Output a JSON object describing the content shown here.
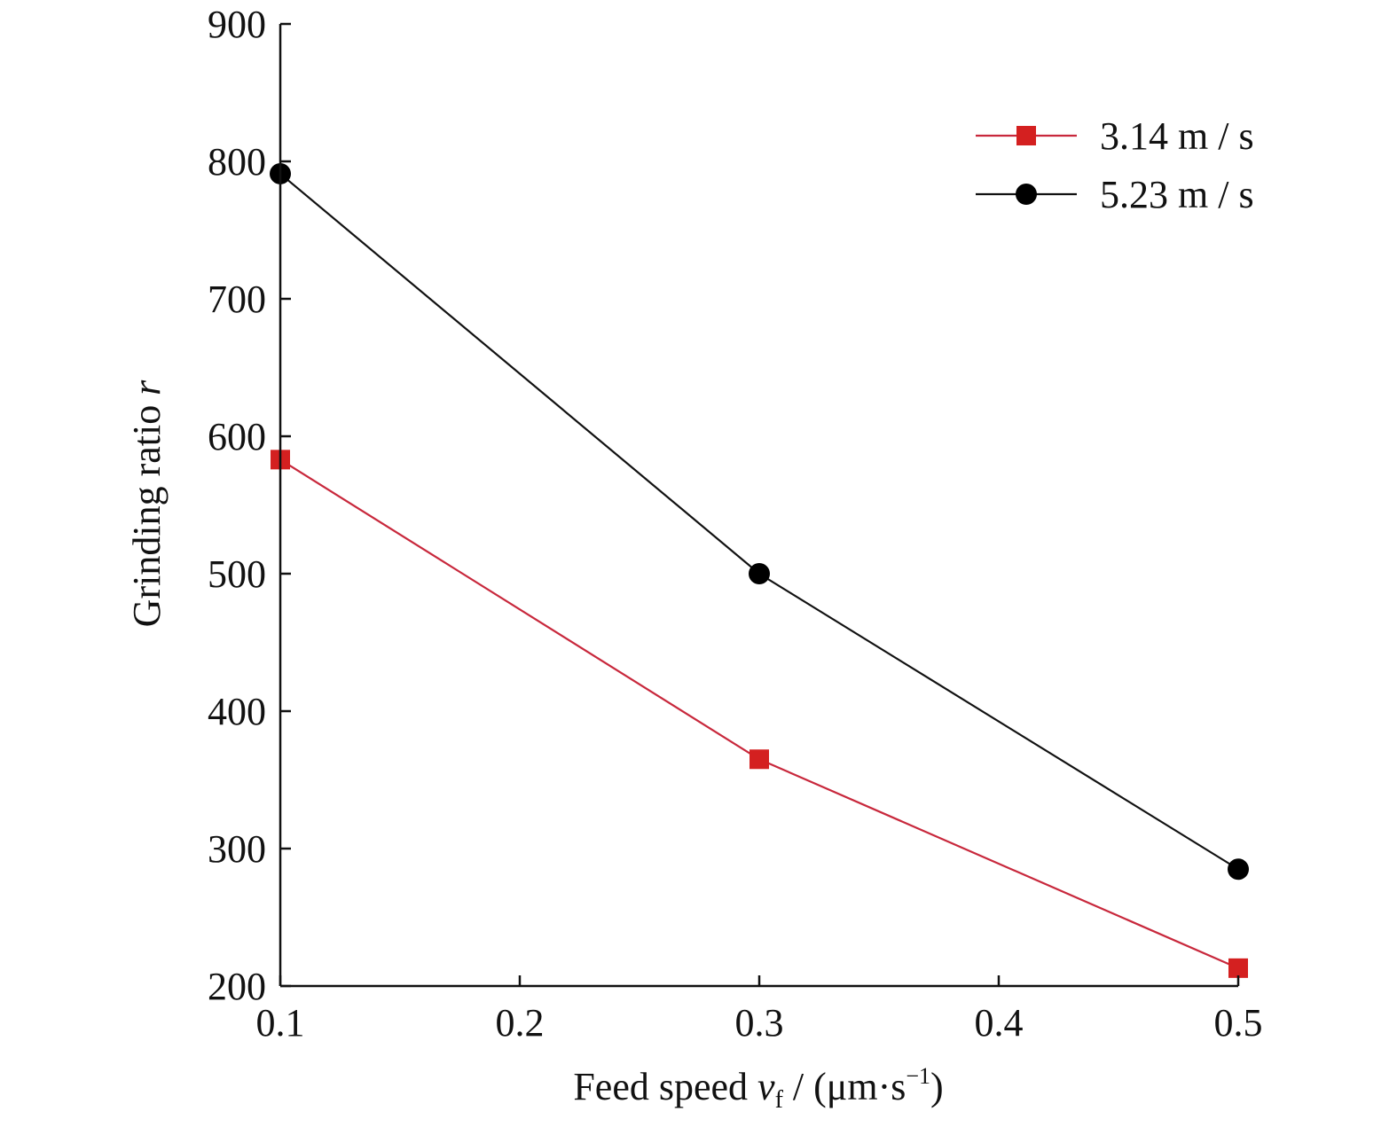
{
  "chart_data": {
    "type": "line",
    "title": "",
    "xlabel": {
      "prefix": "Feed speed ",
      "var": "v",
      "sub": "f",
      "mid": " / (μm·s",
      "sup": "−1",
      "suffix": ")"
    },
    "ylabel": {
      "prefix": "Grinding ratio ",
      "var": "r"
    },
    "xlim": [
      0.1,
      0.5
    ],
    "ylim": [
      200,
      900
    ],
    "x_ticks": [
      "0.1",
      "0.2",
      "0.3",
      "0.4",
      "0.5"
    ],
    "y_ticks": [
      "200",
      "300",
      "400",
      "500",
      "600",
      "700",
      "800",
      "900"
    ],
    "grid": false,
    "legend_position": "top-right",
    "series": [
      {
        "name": "3.14 m / s",
        "color": "#c8283c",
        "marker": "square",
        "marker_color": "#d42020",
        "x": [
          0.1,
          0.3,
          0.5
        ],
        "y": [
          583,
          365,
          213
        ]
      },
      {
        "name": "5.23 m / s",
        "color": "#111111",
        "marker": "circle",
        "marker_color": "#000000",
        "x": [
          0.1,
          0.3,
          0.5
        ],
        "y": [
          791,
          500,
          285
        ]
      }
    ]
  }
}
